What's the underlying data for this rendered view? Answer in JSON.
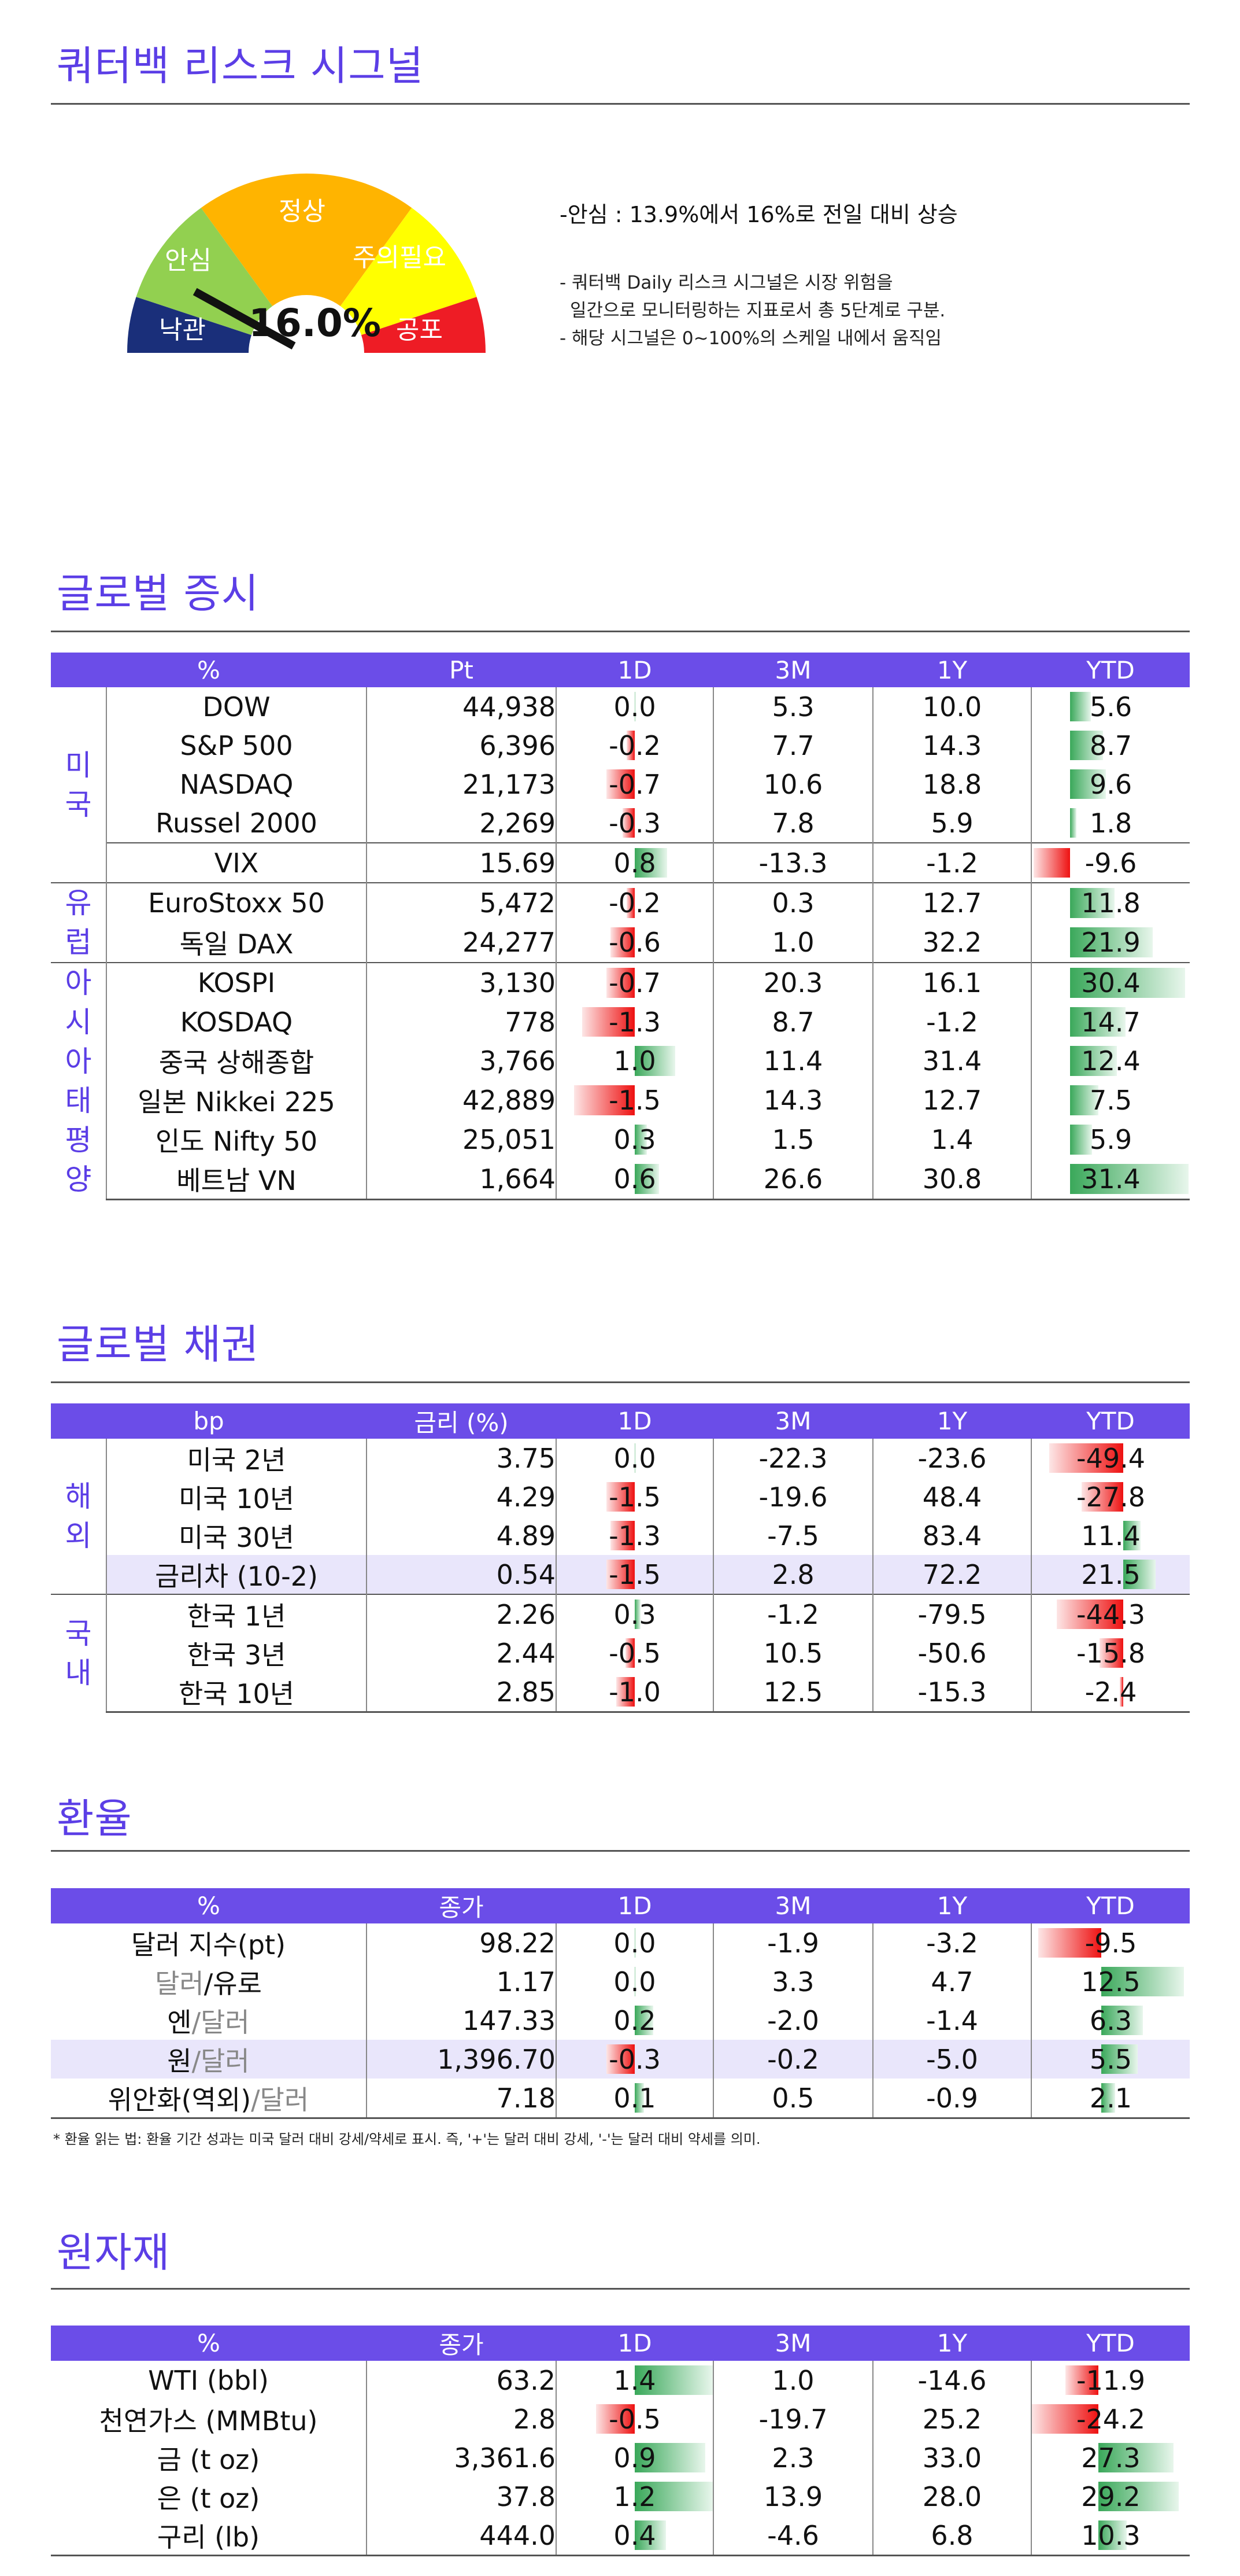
{
  "risk": {
    "title": "쿼터백 리스크 시그널",
    "gauge_labels": [
      "낙관",
      "안심",
      "정상",
      "주의필요",
      "공포"
    ],
    "value": "16.0%",
    "value_fraction": 0.16,
    "note_main": "-안심 : 13.9%에서 16%로 전일 대비 상승",
    "note_sub1": "- 쿼터백 Daily 리스크 시그널은 시장 위험을",
    "note_sub2": "  일간으로 모니터링하는 지표로서 총 5단계로 구분.",
    "note_sub3": "- 해당 시그널은 0~100%의 스케일 내에서 움직임"
  },
  "equity": {
    "title": "글로벌 증시",
    "headers": [
      "%",
      "Pt",
      "1D",
      "3M",
      "1Y",
      "YTD"
    ],
    "groups": [
      "미국",
      "유럽",
      "아시아태평양"
    ],
    "rows": [
      [
        "DOW",
        "44,938",
        "0.0",
        "5.3",
        "10.0",
        "5.6"
      ],
      [
        "S&P 500",
        "6,396",
        "-0.2",
        "7.7",
        "14.3",
        "8.7"
      ],
      [
        "NASDAQ",
        "21,173",
        "-0.7",
        "10.6",
        "18.8",
        "9.6"
      ],
      [
        "Russel 2000",
        "2,269",
        "-0.3",
        "7.8",
        "5.9",
        "1.8"
      ],
      [
        "VIX",
        "15.69",
        "0.8",
        "-13.3",
        "-1.2",
        "-9.6"
      ],
      [
        "EuroStoxx 50",
        "5,472",
        "-0.2",
        "0.3",
        "12.7",
        "11.8"
      ],
      [
        "독일 DAX",
        "24,277",
        "-0.6",
        "1.0",
        "32.2",
        "21.9"
      ],
      [
        "KOSPI",
        "3,130",
        "-0.7",
        "20.3",
        "16.1",
        "30.4"
      ],
      [
        "KOSDAQ",
        "778",
        "-1.3",
        "8.7",
        "-1.2",
        "14.7"
      ],
      [
        "중국 상해종합",
        "3,766",
        "1.0",
        "11.4",
        "31.4",
        "12.4"
      ],
      [
        "일본 Nikkei 225",
        "42,889",
        "-1.5",
        "14.3",
        "12.7",
        "7.5"
      ],
      [
        "인도 Nifty 50",
        "25,051",
        "0.3",
        "1.5",
        "1.4",
        "5.9"
      ],
      [
        "베트남 VN",
        "1,664",
        "0.6",
        "26.6",
        "30.8",
        "31.4"
      ]
    ]
  },
  "bonds": {
    "title": "글로벌 채권",
    "headers": [
      "bp",
      "금리 (%)",
      "1D",
      "3M",
      "1Y",
      "YTD"
    ],
    "groups": [
      "해외",
      "국내"
    ],
    "rows": [
      [
        "미국 2년",
        "3.75",
        "0.0",
        "-22.3",
        "-23.6",
        "-49.4"
      ],
      [
        "미국 10년",
        "4.29",
        "-1.5",
        "-19.6",
        "48.4",
        "-27.8"
      ],
      [
        "미국 30년",
        "4.89",
        "-1.3",
        "-7.5",
        "83.4",
        "11.4"
      ],
      [
        "금리차 (10-2)",
        "0.54",
        "-1.5",
        "2.8",
        "72.2",
        "21.5"
      ],
      [
        "한국 1년",
        "2.26",
        "0.3",
        "-1.2",
        "-79.5",
        "-44.3"
      ],
      [
        "한국 3년",
        "2.44",
        "-0.5",
        "10.5",
        "-50.6",
        "-15.8"
      ],
      [
        "한국 10년",
        "2.85",
        "-1.0",
        "12.5",
        "-15.3",
        "-2.4"
      ]
    ]
  },
  "fx": {
    "title": "환율",
    "headers": [
      "%",
      "종가",
      "1D",
      "3M",
      "1Y",
      "YTD"
    ],
    "rows": [
      [
        [
          "달러 지수(pt)",
          ""
        ],
        "98.22",
        "0.0",
        "-1.9",
        "-3.2",
        "-9.5"
      ],
      [
        [
          "달러",
          "/유로"
        ],
        "1.17",
        "0.0",
        "3.3",
        "4.7",
        "12.5"
      ],
      [
        [
          "엔",
          "/달러"
        ],
        "147.33",
        "0.2",
        "-2.0",
        "-1.4",
        "6.3"
      ],
      [
        [
          "원",
          "/달러"
        ],
        "1,396.70",
        "-0.3",
        "-0.2",
        "-5.0",
        "5.5"
      ],
      [
        [
          "위안화(역외)",
          "/달러"
        ],
        "7.18",
        "0.1",
        "0.5",
        "-0.9",
        "2.1"
      ]
    ],
    "footnote": "* 환율 읽는 법: 환율 기간 성과는 미국 달러 대비 강세/약세로 표시. 즉, '+'는 달러 대비 강세, '-'는 달러 대비 약세를 의미."
  },
  "commodities": {
    "title": "원자재",
    "headers": [
      "%",
      "종가",
      "1D",
      "3M",
      "1Y",
      "YTD"
    ],
    "rows": [
      [
        "WTI (bbl)",
        "63.2",
        "1.4",
        "1.0",
        "-14.6",
        "-11.9"
      ],
      [
        "천연가스 (MMBtu)",
        "2.8",
        "-0.5",
        "-19.7",
        "25.2",
        "-24.2"
      ],
      [
        "금 (t oz)",
        "3,361.6",
        "0.9",
        "2.3",
        "33.0",
        "27.3"
      ],
      [
        "은 (t oz)",
        "37.8",
        "1.2",
        "13.9",
        "28.0",
        "29.2"
      ],
      [
        "구리 (lb)",
        "444.0",
        "0.4",
        "-4.6",
        "6.8",
        "10.3"
      ]
    ]
  },
  "colors": {
    "accent": "#6b4de8",
    "positive": "#3aa85a",
    "negative": "#ee1111",
    "highlight": "#e9e6fb"
  }
}
